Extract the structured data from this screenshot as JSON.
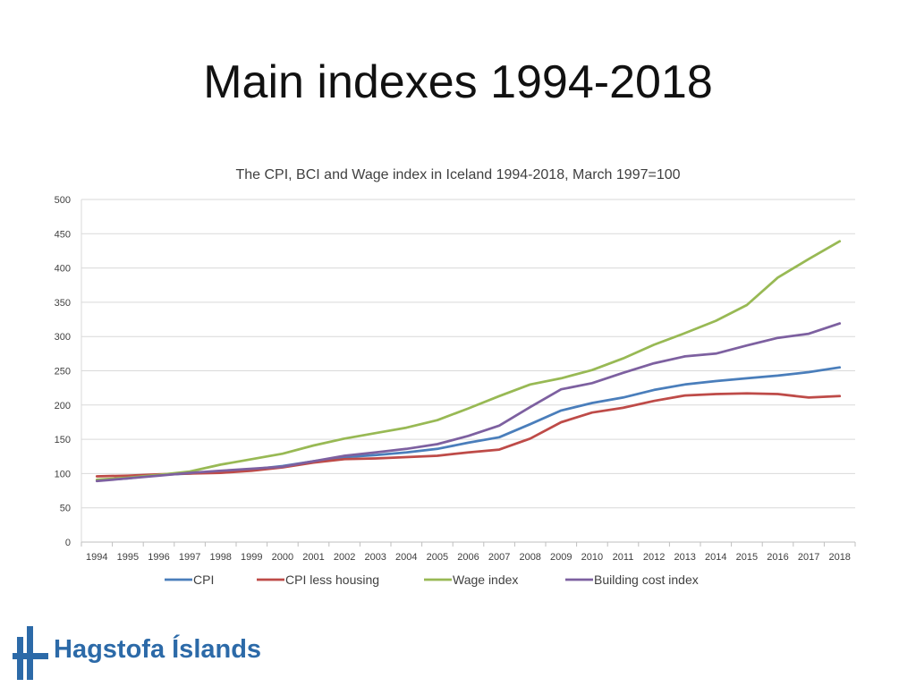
{
  "slide": {
    "title": "Main indexes 1994-2018"
  },
  "logo": {
    "text": "Hagstofa Íslands",
    "color": "#2c6aa8"
  },
  "chart_data": {
    "type": "line",
    "title": "The CPI, BCI and Wage index in Iceland 1994-2018, March 1997=100",
    "xlabel": "",
    "ylabel": "",
    "categories": [
      "1994",
      "1995",
      "1996",
      "1997",
      "1998",
      "1999",
      "2000",
      "2001",
      "2002",
      "2003",
      "2004",
      "2005",
      "2006",
      "2007",
      "2008",
      "2009",
      "2010",
      "2011",
      "2012",
      "2013",
      "2014",
      "2015",
      "2016",
      "2017",
      "2018"
    ],
    "ylim": [
      0,
      500
    ],
    "yticks": [
      0,
      50,
      100,
      150,
      200,
      250,
      300,
      350,
      400,
      450,
      500
    ],
    "grid": true,
    "legend_position": "bottom",
    "series": [
      {
        "name": "CPI",
        "color": "#4a7ebb",
        "values": [
          90,
          93,
          98,
          100,
          103,
          106,
          111,
          118,
          124,
          127,
          131,
          136,
          145,
          153,
          172,
          192,
          203,
          211,
          222,
          230,
          235,
          239,
          243,
          248,
          255
        ]
      },
      {
        "name": "CPI less housing",
        "color": "#be4b48",
        "values": [
          96,
          97,
          99,
          100,
          101,
          104,
          109,
          116,
          121,
          122,
          124,
          126,
          131,
          135,
          151,
          175,
          189,
          196,
          206,
          214,
          216,
          217,
          216,
          211,
          213
        ]
      },
      {
        "name": "Wage index",
        "color": "#98b954",
        "values": [
          91,
          94,
          98,
          103,
          113,
          121,
          129,
          141,
          151,
          159,
          167,
          178,
          195,
          213,
          230,
          239,
          251,
          268,
          288,
          305,
          323,
          346,
          386,
          413,
          439
        ]
      },
      {
        "name": "Building cost index",
        "color": "#7d60a0",
        "values": [
          89,
          93,
          97,
          101,
          104,
          107,
          110,
          118,
          126,
          131,
          136,
          143,
          155,
          170,
          197,
          223,
          232,
          247,
          261,
          271,
          275,
          287,
          298,
          304,
          319
        ]
      }
    ]
  }
}
